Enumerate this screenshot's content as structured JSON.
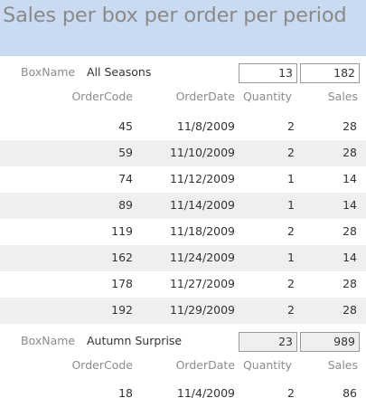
{
  "report": {
    "title": "Sales per box per order per period"
  },
  "labels": {
    "box_name": "BoxName",
    "order_code": "OrderCode",
    "order_date": "OrderDate",
    "quantity": "Quantity",
    "sales": "Sales"
  },
  "groups": [
    {
      "box_name": "All Seasons",
      "total_quantity": "13",
      "total_sales": "182",
      "orders": [
        {
          "code": "45",
          "date": "11/8/2009",
          "quantity": "2",
          "sales": "28"
        },
        {
          "code": "59",
          "date": "11/10/2009",
          "quantity": "2",
          "sales": "28"
        },
        {
          "code": "74",
          "date": "11/12/2009",
          "quantity": "1",
          "sales": "14"
        },
        {
          "code": "89",
          "date": "11/14/2009",
          "quantity": "1",
          "sales": "14"
        },
        {
          "code": "119",
          "date": "11/18/2009",
          "quantity": "2",
          "sales": "28"
        },
        {
          "code": "162",
          "date": "11/24/2009",
          "quantity": "1",
          "sales": "14"
        },
        {
          "code": "178",
          "date": "11/27/2009",
          "quantity": "2",
          "sales": "28"
        },
        {
          "code": "192",
          "date": "11/29/2009",
          "quantity": "2",
          "sales": "28"
        }
      ]
    },
    {
      "box_name": "Autumn Surprise",
      "total_quantity": "23",
      "total_sales": "989",
      "orders": [
        {
          "code": "18",
          "date": "11/4/2009",
          "quantity": "2",
          "sales": "86"
        }
      ]
    }
  ]
}
